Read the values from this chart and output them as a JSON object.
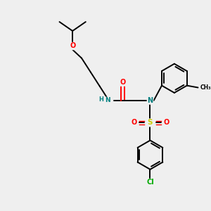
{
  "bg_color": "#efefef",
  "atom_colors": {
    "N": "#008080",
    "O": "#ff0000",
    "S": "#cccc00",
    "Cl": "#00aa00",
    "H": "#008080",
    "C": "#000000"
  },
  "bond_lw": 1.4,
  "ring_r": 0.72,
  "inner_r": 0.58
}
